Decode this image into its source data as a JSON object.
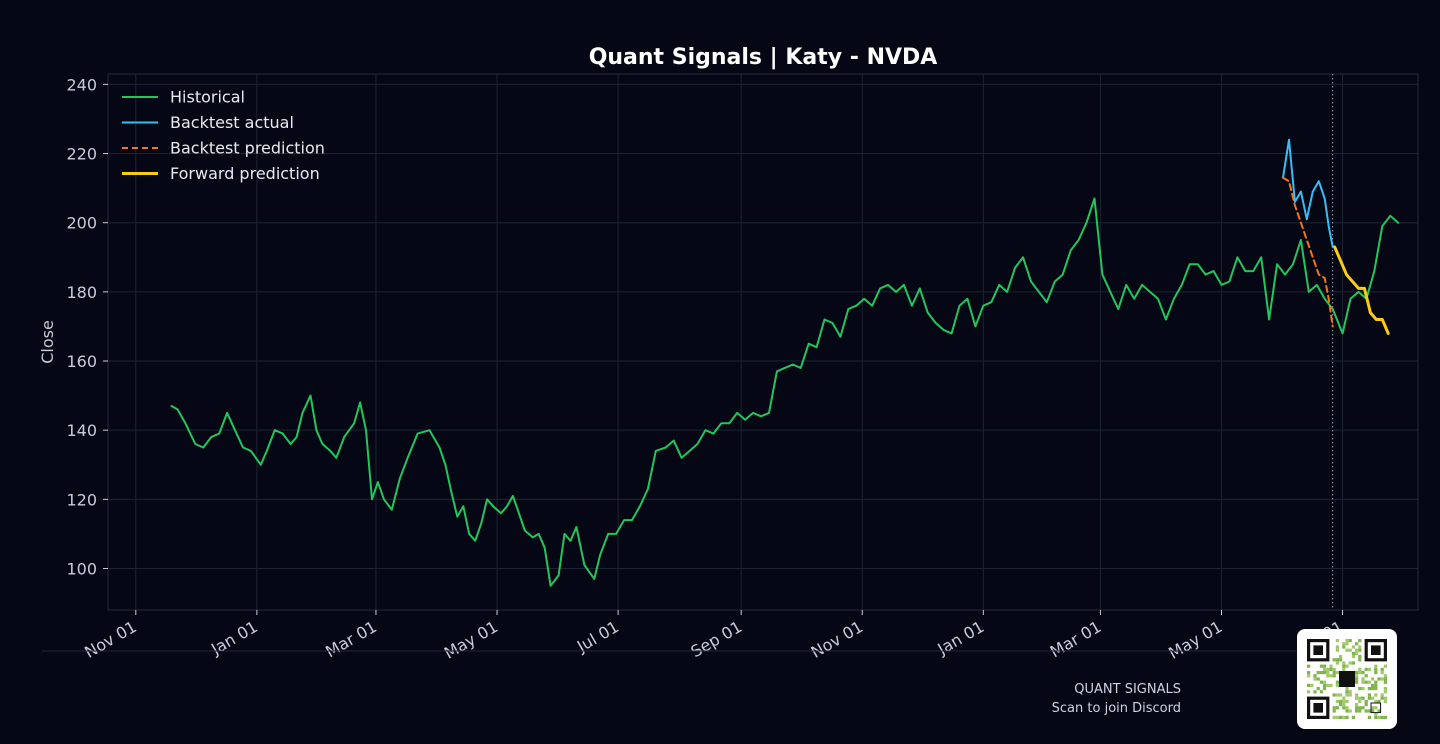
{
  "chart_data": {
    "type": "line",
    "title": "Quant Signals | Katy - NVDA",
    "xlabel": "",
    "ylabel": "Close",
    "ylim": [
      88,
      243
    ],
    "xlim": [
      "2023-10-18",
      "2025-08-08"
    ],
    "yticks": [
      100,
      120,
      140,
      160,
      180,
      200,
      220,
      240
    ],
    "xticks": [
      {
        "date": "2023-11-01",
        "label": "Nov 01"
      },
      {
        "date": "2024-01-01",
        "label": "Jan 01"
      },
      {
        "date": "2024-03-01",
        "label": "Mar 01"
      },
      {
        "date": "2024-05-01",
        "label": "May 01"
      },
      {
        "date": "2024-07-01",
        "label": "Jul 01"
      },
      {
        "date": "2024-09-01",
        "label": "Sep 01"
      },
      {
        "date": "2024-11-01",
        "label": "Nov 01"
      },
      {
        "date": "2025-01-01",
        "label": "Jan 01"
      },
      {
        "date": "2025-03-01",
        "label": "Mar 01"
      },
      {
        "date": "2025-05-01",
        "label": "May 01"
      },
      {
        "date": "2025-07-01",
        "label": "Jul 01"
      }
    ],
    "grid": true,
    "legend_position": "top-left",
    "divider_date": "2025-06-26",
    "series": [
      {
        "name": "Historical",
        "color": "#22c55e",
        "style": "solid",
        "points": [
          [
            "2023-11-19",
            147
          ],
          [
            "2023-11-22",
            146
          ],
          [
            "2023-11-26",
            142
          ],
          [
            "2023-12-01",
            136
          ],
          [
            "2023-12-05",
            135
          ],
          [
            "2023-12-09",
            138
          ],
          [
            "2023-12-13",
            139
          ],
          [
            "2023-12-17",
            145
          ],
          [
            "2023-12-21",
            140
          ],
          [
            "2023-12-25",
            135
          ],
          [
            "2023-12-29",
            134
          ],
          [
            "2024-01-03",
            130
          ],
          [
            "2024-01-06",
            134
          ],
          [
            "2024-01-10",
            140
          ],
          [
            "2024-01-14",
            139
          ],
          [
            "2024-01-18",
            136
          ],
          [
            "2024-01-21",
            138
          ],
          [
            "2024-01-24",
            145
          ],
          [
            "2024-01-28",
            150
          ],
          [
            "2024-01-31",
            140
          ],
          [
            "2024-02-03",
            136
          ],
          [
            "2024-02-07",
            134
          ],
          [
            "2024-02-10",
            132
          ],
          [
            "2024-02-14",
            138
          ],
          [
            "2024-02-19",
            142
          ],
          [
            "2024-02-22",
            148
          ],
          [
            "2024-02-25",
            140
          ],
          [
            "2024-02-28",
            120
          ],
          [
            "2024-03-02",
            125
          ],
          [
            "2024-03-05",
            120
          ],
          [
            "2024-03-09",
            117
          ],
          [
            "2024-03-13",
            126
          ],
          [
            "2024-03-17",
            132
          ],
          [
            "2024-03-22",
            139
          ],
          [
            "2024-03-28",
            140
          ],
          [
            "2024-04-02",
            135
          ],
          [
            "2024-04-05",
            130
          ],
          [
            "2024-04-08",
            122
          ],
          [
            "2024-04-11",
            115
          ],
          [
            "2024-04-14",
            118
          ],
          [
            "2024-04-17",
            110
          ],
          [
            "2024-04-20",
            108
          ],
          [
            "2024-04-23",
            113
          ],
          [
            "2024-04-26",
            120
          ],
          [
            "2024-04-29",
            118
          ],
          [
            "2024-05-03",
            116
          ],
          [
            "2024-05-06",
            118
          ],
          [
            "2024-05-09",
            121
          ],
          [
            "2024-05-12",
            116
          ],
          [
            "2024-05-15",
            111
          ],
          [
            "2024-05-19",
            109
          ],
          [
            "2024-05-22",
            110
          ],
          [
            "2024-05-25",
            106
          ],
          [
            "2024-05-28",
            95
          ],
          [
            "2024-06-01",
            98
          ],
          [
            "2024-06-04",
            110
          ],
          [
            "2024-06-07",
            108
          ],
          [
            "2024-06-10",
            112
          ],
          [
            "2024-06-14",
            101
          ],
          [
            "2024-06-19",
            97
          ],
          [
            "2024-06-22",
            104
          ],
          [
            "2024-06-26",
            110
          ],
          [
            "2024-06-30",
            110
          ],
          [
            "2024-07-04",
            114
          ],
          [
            "2024-07-08",
            114
          ],
          [
            "2024-07-12",
            118
          ],
          [
            "2024-07-16",
            123
          ],
          [
            "2024-07-20",
            134
          ],
          [
            "2024-07-25",
            135
          ],
          [
            "2024-07-29",
            137
          ],
          [
            "2024-08-02",
            132
          ],
          [
            "2024-08-06",
            134
          ],
          [
            "2024-08-10",
            136
          ],
          [
            "2024-08-14",
            140
          ],
          [
            "2024-08-18",
            139
          ],
          [
            "2024-08-22",
            142
          ],
          [
            "2024-08-26",
            142
          ],
          [
            "2024-08-30",
            145
          ],
          [
            "2024-09-03",
            143
          ],
          [
            "2024-09-07",
            145
          ],
          [
            "2024-09-11",
            144
          ],
          [
            "2024-09-15",
            145
          ],
          [
            "2024-09-19",
            157
          ],
          [
            "2024-09-23",
            158
          ],
          [
            "2024-09-27",
            159
          ],
          [
            "2024-10-01",
            158
          ],
          [
            "2024-10-05",
            165
          ],
          [
            "2024-10-09",
            164
          ],
          [
            "2024-10-13",
            172
          ],
          [
            "2024-10-17",
            171
          ],
          [
            "2024-10-21",
            167
          ],
          [
            "2024-10-25",
            175
          ],
          [
            "2024-10-29",
            176
          ],
          [
            "2024-11-02",
            178
          ],
          [
            "2024-11-06",
            176
          ],
          [
            "2024-11-10",
            181
          ],
          [
            "2024-11-14",
            182
          ],
          [
            "2024-11-18",
            180
          ],
          [
            "2024-11-22",
            182
          ],
          [
            "2024-11-26",
            176
          ],
          [
            "2024-11-30",
            181
          ],
          [
            "2024-12-04",
            174
          ],
          [
            "2024-12-08",
            171
          ],
          [
            "2024-12-12",
            169
          ],
          [
            "2024-12-16",
            168
          ],
          [
            "2024-12-20",
            176
          ],
          [
            "2024-12-24",
            178
          ],
          [
            "2024-12-28",
            170
          ],
          [
            "2025-01-01",
            176
          ],
          [
            "2025-01-05",
            177
          ],
          [
            "2025-01-09",
            182
          ],
          [
            "2025-01-13",
            180
          ],
          [
            "2025-01-17",
            187
          ],
          [
            "2025-01-21",
            190
          ],
          [
            "2025-01-25",
            183
          ],
          [
            "2025-01-29",
            180
          ],
          [
            "2025-02-02",
            177
          ],
          [
            "2025-02-06",
            183
          ],
          [
            "2025-02-10",
            185
          ],
          [
            "2025-02-14",
            192
          ],
          [
            "2025-02-18",
            195
          ],
          [
            "2025-02-22",
            200
          ],
          [
            "2025-02-26",
            207
          ],
          [
            "2025-03-02",
            185
          ],
          [
            "2025-03-06",
            180
          ],
          [
            "2025-03-10",
            175
          ],
          [
            "2025-03-14",
            182
          ],
          [
            "2025-03-18",
            178
          ],
          [
            "2025-03-22",
            182
          ],
          [
            "2025-03-26",
            180
          ],
          [
            "2025-03-30",
            178
          ],
          [
            "2025-04-03",
            172
          ],
          [
            "2025-04-07",
            178
          ],
          [
            "2025-04-11",
            182
          ],
          [
            "2025-04-15",
            188
          ],
          [
            "2025-04-19",
            188
          ],
          [
            "2025-04-23",
            185
          ],
          [
            "2025-04-27",
            186
          ],
          [
            "2025-05-01",
            182
          ],
          [
            "2025-05-05",
            183
          ],
          [
            "2025-05-09",
            190
          ],
          [
            "2025-05-13",
            186
          ],
          [
            "2025-05-17",
            186
          ],
          [
            "2025-05-21",
            190
          ],
          [
            "2025-05-25",
            172
          ],
          [
            "2025-05-29",
            188
          ],
          [
            "2025-06-02",
            185
          ],
          [
            "2025-06-06",
            188
          ],
          [
            "2025-06-10",
            195
          ],
          [
            "2025-06-14",
            180
          ],
          [
            "2025-06-18",
            182
          ],
          [
            "2025-06-22",
            178
          ],
          [
            "2025-06-26",
            175
          ],
          [
            "2025-07-01",
            168
          ],
          [
            "2025-07-05",
            178
          ],
          [
            "2025-07-09",
            180
          ],
          [
            "2025-07-13",
            178
          ],
          [
            "2025-07-17",
            186
          ],
          [
            "2025-07-21",
            199
          ],
          [
            "2025-07-25",
            202
          ],
          [
            "2025-07-29",
            200
          ]
        ]
      },
      {
        "name": "Backtest actual",
        "color": "#38bdf8",
        "style": "solid",
        "points": [
          [
            "2025-06-01",
            213
          ],
          [
            "2025-06-04",
            224
          ],
          [
            "2025-06-07",
            206
          ],
          [
            "2025-06-10",
            209
          ],
          [
            "2025-06-13",
            201
          ],
          [
            "2025-06-16",
            209
          ],
          [
            "2025-06-19",
            212
          ],
          [
            "2025-06-22",
            207
          ],
          [
            "2025-06-24",
            199
          ],
          [
            "2025-06-26",
            193
          ]
        ]
      },
      {
        "name": "Backtest prediction",
        "color": "#f97316",
        "style": "dashed",
        "points": [
          [
            "2025-06-01",
            213
          ],
          [
            "2025-06-04",
            212
          ],
          [
            "2025-06-07",
            205
          ],
          [
            "2025-06-10",
            200
          ],
          [
            "2025-06-13",
            195
          ],
          [
            "2025-06-16",
            190
          ],
          [
            "2025-06-19",
            185
          ],
          [
            "2025-06-22",
            184
          ],
          [
            "2025-06-24",
            178
          ],
          [
            "2025-06-26",
            170
          ]
        ]
      },
      {
        "name": "Forward prediction",
        "color": "#facc15",
        "style": "solid",
        "points": [
          [
            "2025-06-27",
            193
          ],
          [
            "2025-06-30",
            189
          ],
          [
            "2025-07-03",
            185
          ],
          [
            "2025-07-06",
            183
          ],
          [
            "2025-07-09",
            181
          ],
          [
            "2025-07-12",
            181
          ],
          [
            "2025-07-15",
            174
          ],
          [
            "2025-07-18",
            172
          ],
          [
            "2025-07-21",
            172
          ],
          [
            "2025-07-24",
            168
          ]
        ]
      }
    ]
  },
  "footer": {
    "brand": "QUANT SIGNALS",
    "cta": "Scan to join Discord"
  },
  "qr_icon": "qr-code-icon"
}
